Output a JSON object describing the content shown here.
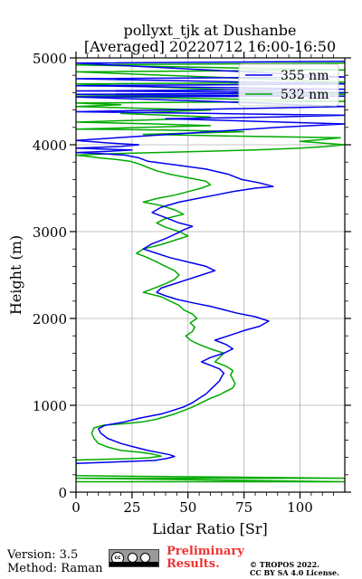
{
  "chart_data": {
    "type": "line",
    "title_line1": "pollyxt_tjk at Dushanbe",
    "title_line2": "[Averaged] 20220712 16:00-16:50",
    "xlabel": "Lidar Ratio [Sr]",
    "ylabel": "Height (m)",
    "xlim": [
      0,
      120
    ],
    "ylim": [
      0,
      5000
    ],
    "xticks": [
      0,
      25,
      50,
      75,
      100
    ],
    "yticks": [
      0,
      1000,
      2000,
      3000,
      4000,
      5000
    ],
    "grid": true,
    "legend_position": "top-right",
    "series": [
      {
        "name": "355 nm",
        "color": "#0000ee",
        "points": [
          [
            0,
            330
          ],
          [
            20,
            350
          ],
          [
            35,
            365
          ],
          [
            40,
            385
          ],
          [
            44,
            410
          ],
          [
            42,
            430
          ],
          [
            38,
            450
          ],
          [
            32,
            480
          ],
          [
            26,
            520
          ],
          [
            20,
            560
          ],
          [
            14,
            620
          ],
          [
            11,
            680
          ],
          [
            10,
            730
          ],
          [
            13,
            770
          ],
          [
            22,
            810
          ],
          [
            28,
            850
          ],
          [
            34,
            880
          ],
          [
            38,
            900
          ],
          [
            42,
            930
          ],
          [
            48,
            980
          ],
          [
            52,
            1030
          ],
          [
            55,
            1080
          ],
          [
            58,
            1130
          ],
          [
            60,
            1180
          ],
          [
            62,
            1230
          ],
          [
            64,
            1280
          ],
          [
            65,
            1330
          ],
          [
            66,
            1370
          ],
          [
            64,
            1420
          ],
          [
            60,
            1460
          ],
          [
            56,
            1500
          ],
          [
            60,
            1550
          ],
          [
            66,
            1600
          ],
          [
            70,
            1650
          ],
          [
            67,
            1700
          ],
          [
            62,
            1750
          ],
          [
            68,
            1800
          ],
          [
            75,
            1860
          ],
          [
            82,
            1910
          ],
          [
            86,
            1970
          ],
          [
            80,
            2020
          ],
          [
            72,
            2060
          ],
          [
            66,
            2100
          ],
          [
            60,
            2140
          ],
          [
            52,
            2180
          ],
          [
            45,
            2220
          ],
          [
            40,
            2260
          ],
          [
            36,
            2300
          ],
          [
            38,
            2350
          ],
          [
            44,
            2400
          ],
          [
            50,
            2450
          ],
          [
            56,
            2500
          ],
          [
            62,
            2550
          ],
          [
            58,
            2600
          ],
          [
            50,
            2650
          ],
          [
            42,
            2700
          ],
          [
            36,
            2750
          ],
          [
            30,
            2800
          ],
          [
            34,
            2860
          ],
          [
            40,
            2920
          ],
          [
            45,
            2980
          ],
          [
            48,
            3020
          ],
          [
            52,
            3060
          ],
          [
            46,
            3100
          ],
          [
            40,
            3160
          ],
          [
            34,
            3220
          ],
          [
            38,
            3280
          ],
          [
            46,
            3340
          ],
          [
            54,
            3380
          ],
          [
            62,
            3420
          ],
          [
            70,
            3460
          ],
          [
            80,
            3500
          ],
          [
            88,
            3520
          ],
          [
            82,
            3560
          ],
          [
            74,
            3600
          ],
          [
            68,
            3660
          ],
          [
            58,
            3720
          ],
          [
            44,
            3770
          ],
          [
            32,
            3810
          ],
          [
            28,
            3850
          ],
          [
            22,
            3880
          ],
          [
            10,
            3900
          ],
          [
            0,
            3910
          ],
          [
            15,
            3925
          ],
          [
            25,
            3940
          ],
          [
            0,
            3960
          ],
          [
            20,
            3980
          ],
          [
            28,
            4000
          ],
          [
            15,
            4020
          ],
          [
            0,
            4050
          ],
          [
            30,
            4100
          ],
          [
            60,
            4150
          ],
          [
            90,
            4200
          ],
          [
            120,
            4240
          ],
          [
            80,
            4270
          ],
          [
            40,
            4300
          ],
          [
            90,
            4320
          ],
          [
            120,
            4340
          ],
          [
            60,
            4360
          ],
          [
            0,
            4380
          ],
          [
            40,
            4400
          ],
          [
            80,
            4420
          ],
          [
            120,
            4440
          ],
          [
            60,
            4500
          ],
          [
            0,
            4550
          ],
          [
            120,
            4560
          ],
          [
            0,
            4580
          ],
          [
            120,
            4600
          ],
          [
            0,
            4620
          ],
          [
            120,
            4640
          ],
          [
            0,
            4680
          ],
          [
            120,
            4700
          ],
          [
            0,
            4760
          ],
          [
            120,
            4780
          ],
          [
            0,
            4940
          ],
          [
            120,
            4960
          ]
        ]
      },
      {
        "name": "532 nm",
        "color": "#00aa00",
        "points": [
          [
            0,
            120
          ],
          [
            120,
            120
          ],
          [
            0,
            160
          ],
          [
            120,
            160
          ],
          [
            0,
            190
          ],
          [
            0,
            370
          ],
          [
            12,
            378
          ],
          [
            24,
            385
          ],
          [
            32,
            395
          ],
          [
            38,
            415
          ],
          [
            34,
            440
          ],
          [
            28,
            460
          ],
          [
            20,
            480
          ],
          [
            14,
            520
          ],
          [
            10,
            560
          ],
          [
            8,
            620
          ],
          [
            7,
            680
          ],
          [
            8,
            740
          ],
          [
            12,
            770
          ],
          [
            22,
            790
          ],
          [
            30,
            810
          ],
          [
            36,
            840
          ],
          [
            40,
            870
          ],
          [
            44,
            900
          ],
          [
            48,
            940
          ],
          [
            52,
            980
          ],
          [
            56,
            1030
          ],
          [
            60,
            1080
          ],
          [
            64,
            1120
          ],
          [
            67,
            1160
          ],
          [
            70,
            1200
          ],
          [
            71,
            1250
          ],
          [
            70,
            1300
          ],
          [
            69,
            1350
          ],
          [
            70,
            1400
          ],
          [
            67,
            1450
          ],
          [
            62,
            1500
          ],
          [
            64,
            1550
          ],
          [
            66,
            1600
          ],
          [
            60,
            1650
          ],
          [
            55,
            1700
          ],
          [
            51,
            1750
          ],
          [
            49,
            1800
          ],
          [
            52,
            1850
          ],
          [
            53,
            1900
          ],
          [
            51,
            1950
          ],
          [
            54,
            2000
          ],
          [
            52,
            2050
          ],
          [
            48,
            2100
          ],
          [
            46,
            2150
          ],
          [
            42,
            2200
          ],
          [
            38,
            2250
          ],
          [
            30,
            2300
          ],
          [
            35,
            2350
          ],
          [
            40,
            2400
          ],
          [
            44,
            2450
          ],
          [
            46,
            2500
          ],
          [
            44,
            2550
          ],
          [
            40,
            2600
          ],
          [
            36,
            2650
          ],
          [
            32,
            2700
          ],
          [
            27,
            2750
          ],
          [
            30,
            2800
          ],
          [
            38,
            2850
          ],
          [
            44,
            2900
          ],
          [
            50,
            2950
          ],
          [
            46,
            3000
          ],
          [
            40,
            3050
          ],
          [
            36,
            3100
          ],
          [
            40,
            3150
          ],
          [
            48,
            3200
          ],
          [
            44,
            3250
          ],
          [
            38,
            3300
          ],
          [
            30,
            3340
          ],
          [
            36,
            3380
          ],
          [
            44,
            3420
          ],
          [
            50,
            3460
          ],
          [
            56,
            3500
          ],
          [
            60,
            3540
          ],
          [
            58,
            3580
          ],
          [
            50,
            3620
          ],
          [
            42,
            3660
          ],
          [
            36,
            3700
          ],
          [
            32,
            3740
          ],
          [
            28,
            3780
          ],
          [
            24,
            3810
          ],
          [
            18,
            3830
          ],
          [
            10,
            3850
          ],
          [
            4,
            3870
          ],
          [
            0,
            3880
          ],
          [
            20,
            3900
          ],
          [
            50,
            3920
          ],
          [
            80,
            3940
          ],
          [
            100,
            3960
          ],
          [
            112,
            3980
          ],
          [
            120,
            4000
          ],
          [
            110,
            4020
          ],
          [
            100,
            4040
          ],
          [
            110,
            4060
          ],
          [
            118,
            4080
          ],
          [
            70,
            4100
          ],
          [
            30,
            4120
          ],
          [
            60,
            4140
          ],
          [
            75,
            4150
          ],
          [
            40,
            4170
          ],
          [
            0,
            4180
          ],
          [
            30,
            4200
          ],
          [
            60,
            4220
          ],
          [
            35,
            4240
          ],
          [
            0,
            4260
          ],
          [
            25,
            4280
          ],
          [
            50,
            4300
          ],
          [
            60,
            4320
          ],
          [
            40,
            4340
          ],
          [
            20,
            4360
          ],
          [
            40,
            4380
          ],
          [
            60,
            4400
          ],
          [
            30,
            4420
          ],
          [
            0,
            4440
          ],
          [
            20,
            4460
          ],
          [
            0,
            4480
          ],
          [
            120,
            4500
          ],
          [
            0,
            4560
          ],
          [
            120,
            4580
          ],
          [
            0,
            4700
          ],
          [
            120,
            4720
          ],
          [
            0,
            4840
          ],
          [
            120,
            4860
          ],
          [
            0,
            4920
          ],
          [
            120,
            4940
          ]
        ]
      }
    ]
  },
  "footer": {
    "version": "Version: 3.5",
    "method": "Method: Raman",
    "preliminary_line1": "Preliminary",
    "preliminary_line2": "Results.",
    "copyright_line1": "© TROPOS 2022.",
    "copyright_line2": "CC BY SA 4.0 License.",
    "license_badge_text": "cc"
  }
}
